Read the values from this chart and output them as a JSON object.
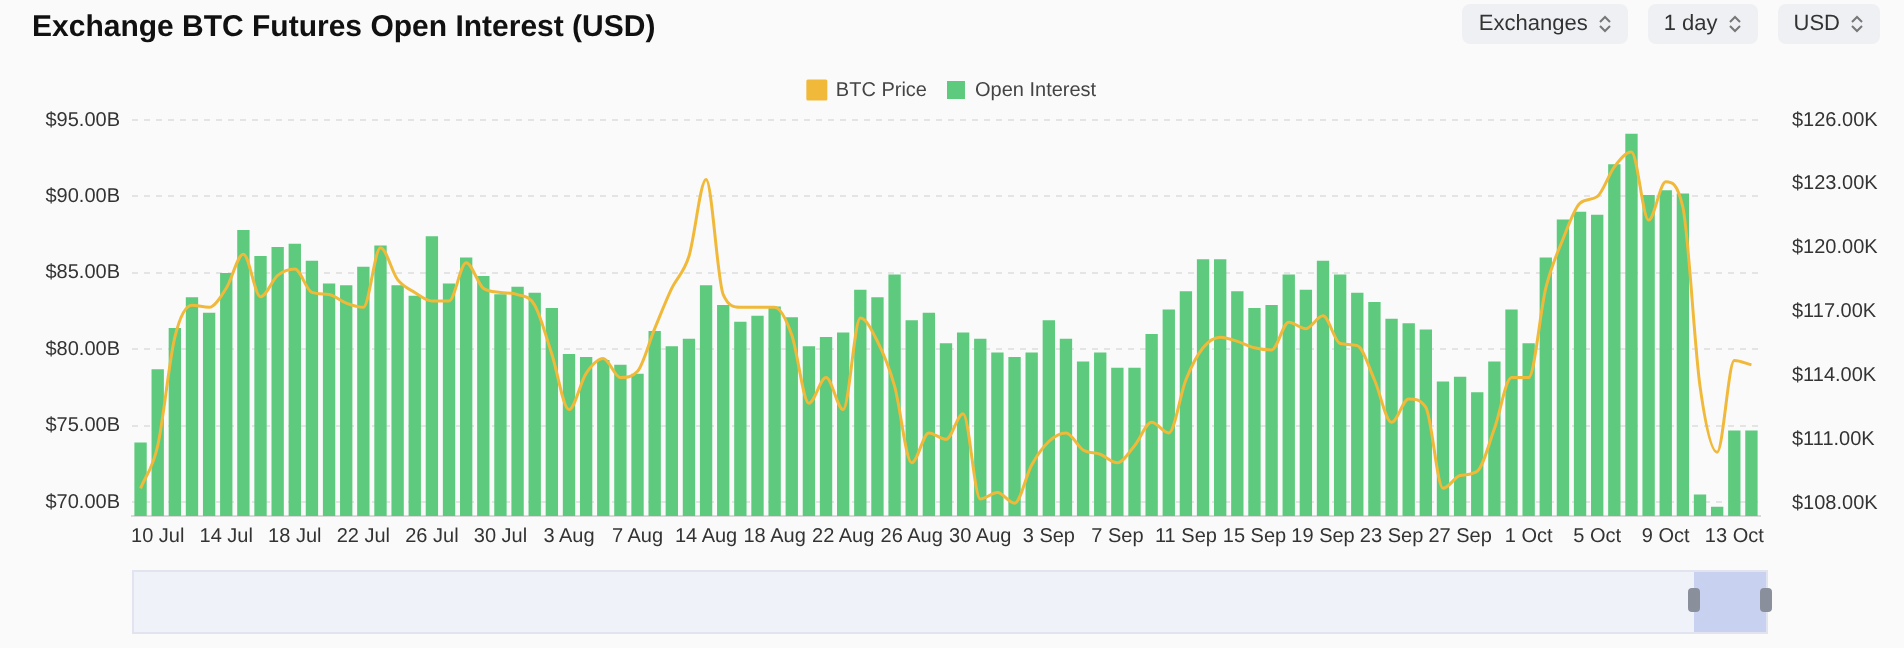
{
  "chart_data": {
    "type": "bar",
    "title": "Exchange BTC Futures Open Interest (USD)",
    "annotations": [
      "Exchanges",
      "1 day",
      "USD"
    ],
    "categories": [
      null,
      "10 Jul",
      null,
      null,
      null,
      "14 Jul",
      null,
      null,
      null,
      "18 Jul",
      null,
      null,
      null,
      "22 Jul",
      null,
      null,
      null,
      "26 Jul",
      null,
      null,
      null,
      "30 Jul",
      null,
      null,
      null,
      "3 Aug",
      null,
      null,
      null,
      "7 Aug",
      null,
      null,
      null,
      "14 Aug",
      null,
      null,
      null,
      "18 Aug",
      null,
      null,
      null,
      "22 Aug",
      null,
      null,
      null,
      "26 Aug",
      null,
      null,
      null,
      "30 Aug",
      null,
      null,
      null,
      "3 Sep",
      null,
      null,
      null,
      "7 Sep",
      null,
      null,
      null,
      "11 Sep",
      null,
      null,
      null,
      "15 Sep",
      null,
      null,
      null,
      "19 Sep",
      null,
      null,
      null,
      "23 Sep",
      null,
      null,
      null,
      "27 Sep",
      null,
      null,
      null,
      "1 Oct",
      null,
      null,
      null,
      "5 Oct",
      null,
      null,
      null,
      "9 Oct",
      null,
      null,
      null,
      "13 Oct",
      null
    ],
    "series": [
      {
        "name": "BTC Price",
        "type": "line",
        "axis": "y2",
        "color": "#f0b93a",
        "values": [
          108.7,
          110.7,
          115.8,
          117.3,
          117.2,
          118.1,
          119.7,
          117.7,
          118.7,
          119.0,
          117.9,
          117.8,
          117.4,
          117.2,
          120.0,
          118.5,
          117.9,
          117.5,
          117.5,
          119.3,
          118.1,
          117.9,
          117.8,
          117.3,
          115.0,
          112.4,
          114.1,
          114.8,
          113.9,
          114.2,
          116.2,
          118.1,
          119.6,
          123.2,
          117.8,
          117.2,
          117.2,
          117.2,
          115.9,
          112.7,
          113.9,
          112.4,
          116.7,
          115.6,
          113.5,
          109.9,
          111.3,
          111.0,
          112.2,
          108.2,
          108.5,
          108.0,
          109.8,
          110.9,
          111.3,
          110.5,
          110.3,
          109.9,
          110.7,
          111.8,
          111.3,
          113.8,
          115.3,
          115.8,
          115.6,
          115.3,
          115.2,
          116.5,
          116.2,
          116.8,
          115.5,
          115.4,
          113.8,
          111.8,
          112.9,
          112.5,
          108.7,
          109.3,
          109.5,
          111.5,
          113.9,
          113.9,
          118.1,
          120.4,
          122.1,
          122.4,
          123.8,
          124.5,
          121.3,
          123.1,
          121.9,
          113.5,
          110.4,
          114.7,
          114.5
        ]
      },
      {
        "name": "Open Interest",
        "color": "#5dca7d",
        "values": [
          73.9,
          78.7,
          81.4,
          83.4,
          82.4,
          85.0,
          87.8,
          86.1,
          86.7,
          86.9,
          85.8,
          84.3,
          84.2,
          85.4,
          86.8,
          84.2,
          83.5,
          87.4,
          84.3,
          86.0,
          84.8,
          83.6,
          84.1,
          83.7,
          82.7,
          79.7,
          79.5,
          79.3,
          79.0,
          78.4,
          81.2,
          80.2,
          80.7,
          84.2,
          82.9,
          81.8,
          82.2,
          82.8,
          82.1,
          80.2,
          80.8,
          81.1,
          83.9,
          83.4,
          84.9,
          81.9,
          82.4,
          80.4,
          81.1,
          80.7,
          79.8,
          79.5,
          79.8,
          81.9,
          80.7,
          79.2,
          79.8,
          78.8,
          78.8,
          81.0,
          82.6,
          83.8,
          85.9,
          85.9,
          83.8,
          82.7,
          82.9,
          84.9,
          83.9,
          85.8,
          84.9,
          83.7,
          83.1,
          82.0,
          81.7,
          81.3,
          77.9,
          78.2,
          77.2,
          79.2,
          82.6,
          80.4,
          86.0,
          88.5,
          89.0,
          88.8,
          92.1,
          94.1,
          90.1,
          90.4,
          90.2,
          70.5,
          69.7,
          74.7,
          74.7
        ]
      }
    ],
    "ylim": [
      69.1,
      95
    ],
    "yticks": [
      {
        "value": 70,
        "label": "$70.00B"
      },
      {
        "value": 75,
        "label": "$75.00B"
      },
      {
        "value": 80,
        "label": "$80.00B"
      },
      {
        "value": 85,
        "label": "$85.00B"
      },
      {
        "value": 90,
        "label": "$90.00B"
      },
      {
        "value": 95,
        "label": "$95.00B"
      }
    ],
    "y2lim": [
      107.4,
      126
    ],
    "y2ticks": [
      {
        "value": 108,
        "label": "$108.00K"
      },
      {
        "value": 111,
        "label": "$111.00K"
      },
      {
        "value": 114,
        "label": "$114.00K"
      },
      {
        "value": 117,
        "label": "$117.00K"
      },
      {
        "value": 120,
        "label": "$120.00K"
      },
      {
        "value": 123,
        "label": "$123.00K"
      },
      {
        "value": 126,
        "label": "$126.00K"
      }
    ],
    "grid": "y",
    "legend": "top",
    "marker": "none"
  }
}
